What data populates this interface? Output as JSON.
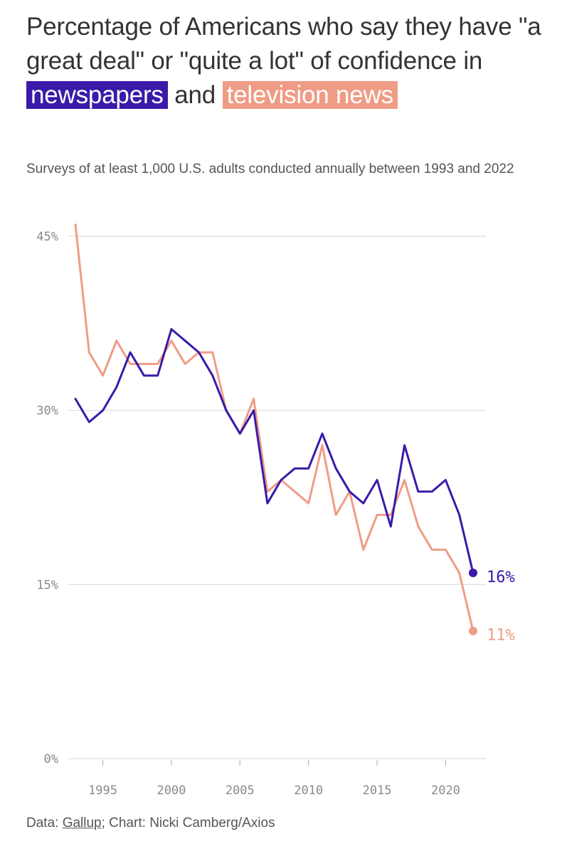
{
  "title": {
    "part1": "Percentage of Americans who say they have \"a great deal\" or \"quite a lot\" of confidence in",
    "highlight1": "newspapers",
    "part2": "and",
    "highlight2": "television news"
  },
  "subtitle": "Surveys of at least 1,000 U.S. adults conducted annually between 1993 and 2022",
  "footer": {
    "data_prefix": "Data:",
    "source_link": "Gallup",
    "credit": "; Chart: Nicki Camberg/Axios"
  },
  "colors": {
    "newspapers": "#3a1aa8",
    "television": "#ef9c86",
    "grid": "#dddddd",
    "tick": "#8a8a8a"
  },
  "chart_data": {
    "type": "line",
    "title": "Percentage of Americans who say they have \"a great deal\" or \"quite a lot\" of confidence in newspapers and television news",
    "xlabel": "",
    "ylabel": "",
    "ylim": [
      0,
      45
    ],
    "xlim": [
      1993,
      2022
    ],
    "yticks": [
      0,
      15,
      30,
      45
    ],
    "ytick_labels": [
      "0%",
      "15%",
      "30%",
      "45%"
    ],
    "xticks": [
      1995,
      2000,
      2005,
      2010,
      2015,
      2020
    ],
    "xtick_labels": [
      "1995",
      "2000",
      "2005",
      "2010",
      "2015",
      "2020"
    ],
    "x": [
      1993,
      1994,
      1995,
      1996,
      1997,
      1998,
      1999,
      2000,
      2001,
      2002,
      2003,
      2004,
      2005,
      2006,
      2007,
      2008,
      2009,
      2010,
      2011,
      2012,
      2013,
      2014,
      2015,
      2016,
      2017,
      2018,
      2019,
      2020,
      2021,
      2022
    ],
    "series": [
      {
        "name": "newspapers",
        "color": "#3a1aa8",
        "end_label": "16%",
        "values": [
          31,
          29,
          30,
          32,
          35,
          33,
          33,
          37,
          36,
          35,
          33,
          30,
          28,
          30,
          22,
          24,
          25,
          25,
          28,
          25,
          23,
          22,
          24,
          20,
          27,
          23,
          23,
          24,
          21,
          16
        ]
      },
      {
        "name": "television news",
        "color": "#ef9c86",
        "end_label": "11%",
        "values": [
          46,
          35,
          33,
          36,
          34,
          34,
          34,
          36,
          34,
          35,
          35,
          30,
          28,
          31,
          23,
          24,
          23,
          22,
          27,
          21,
          23,
          18,
          21,
          21,
          24,
          20,
          18,
          18,
          16,
          11
        ]
      }
    ]
  }
}
